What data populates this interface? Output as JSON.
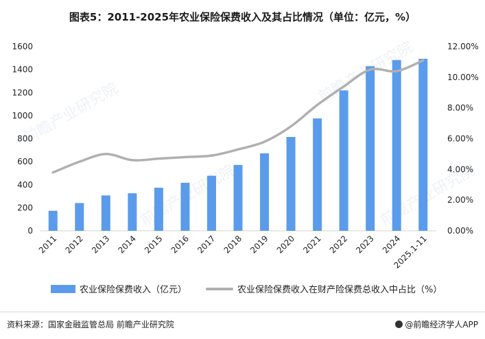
{
  "title": "图表5：2011-2025年农业保险保费收入及其占比情况（单位：亿元，%）",
  "source": "资料来源：国家金融监管总局  前瞻产业研究院",
  "brand": "@前瞻经济学人APP",
  "watermark": "前瞻产业研究院",
  "chart_data": {
    "type": "bar",
    "categories": [
      "2011",
      "2012",
      "2013",
      "2014",
      "2015",
      "2016",
      "2017",
      "2018",
      "2019",
      "2020",
      "2021",
      "2022",
      "2023",
      "2024",
      "2025.1-11"
    ],
    "series": [
      {
        "name": "农业保险保费收入（亿元）",
        "type": "bar",
        "axis": "left",
        "color": "#5B9BEB",
        "values": [
          174,
          241,
          307,
          326,
          374,
          417,
          478,
          572,
          673,
          815,
          976,
          1219,
          1430,
          1483,
          1494
        ]
      },
      {
        "name": "农业保险保费收入在财产险保费总收入中占比（%）",
        "type": "line",
        "axis": "right",
        "color": "#b0b0b0",
        "values": [
          3.8,
          4.5,
          5.0,
          4.6,
          4.7,
          4.8,
          4.9,
          5.3,
          5.8,
          6.8,
          8.2,
          9.4,
          10.5,
          10.4,
          11.1
        ]
      }
    ],
    "y_left": {
      "min": 0,
      "max": 1600,
      "ticks": [
        "0",
        "200",
        "400",
        "600",
        "800",
        "1000",
        "1200",
        "1400",
        "1600"
      ]
    },
    "y_right": {
      "min": 0,
      "max": 12,
      "ticks": [
        "0.00%",
        "2.00%",
        "4.00%",
        "6.00%",
        "8.00%",
        "10.00%",
        "12.00%"
      ]
    },
    "grid": false,
    "legend_position": "bottom"
  }
}
